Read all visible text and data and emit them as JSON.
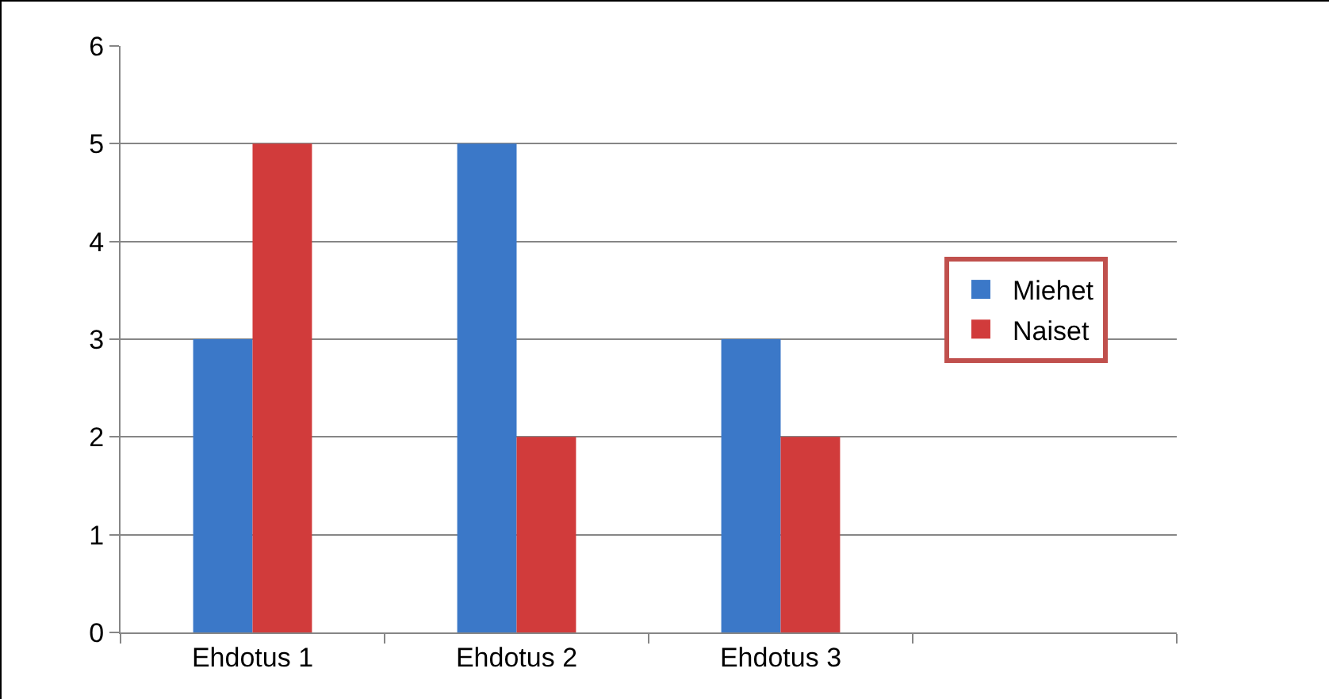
{
  "chart_data": {
    "type": "bar",
    "categories": [
      "Ehdotus 1",
      "Ehdotus 2",
      "Ehdotus 3",
      null
    ],
    "series": [
      {
        "name": "Miehet",
        "color": "#3b78c8",
        "values": [
          3,
          5,
          3,
          null
        ]
      },
      {
        "name": "Naiset",
        "color": "#d13b3b",
        "values": [
          5,
          2,
          2,
          null
        ]
      }
    ],
    "ylim": [
      0,
      6
    ],
    "yticks": [
      0,
      1,
      2,
      3,
      4,
      5,
      6
    ],
    "grid": "y",
    "legend": "right"
  }
}
